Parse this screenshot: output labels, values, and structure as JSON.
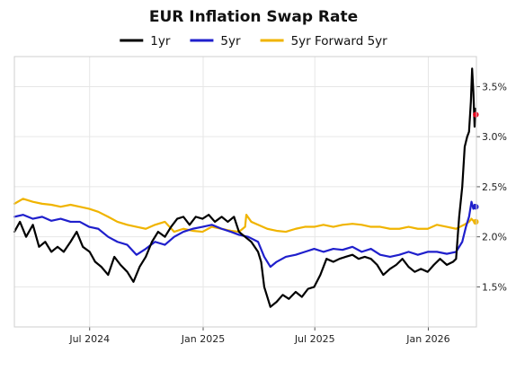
{
  "chart_data": {
    "type": "line",
    "title": "EUR Inflation Swap Rate",
    "xlabel": "",
    "ylabel": "",
    "x_range": [
      "2024-03-01",
      "2026-03-20"
    ],
    "ylim": [
      1.1,
      3.8
    ],
    "y_ticks": [
      1.5,
      2.0,
      2.5,
      3.0,
      3.5
    ],
    "y_tick_labels": [
      "1.5%",
      "2.0%",
      "2.5%",
      "3.0%",
      "3.5%"
    ],
    "x_ticks": [
      "2024-07-01",
      "2025-01-01",
      "2025-07-01",
      "2026-01-01"
    ],
    "x_tick_labels": [
      "Jul 2024",
      "Jan 2025",
      "Jul 2025",
      "Jan 2026"
    ],
    "y_axis_side": "right",
    "grid": true,
    "legend_position": "top-center",
    "series": [
      {
        "name": "1yr",
        "color": "#000000",
        "endpoint_marker_color": "#e8001c",
        "points": [
          [
            "2024-03-01",
            2.05
          ],
          [
            "2024-03-10",
            2.15
          ],
          [
            "2024-03-20",
            2.0
          ],
          [
            "2024-03-31",
            2.12
          ],
          [
            "2024-04-10",
            1.9
          ],
          [
            "2024-04-20",
            1.95
          ],
          [
            "2024-04-30",
            1.85
          ],
          [
            "2024-05-10",
            1.9
          ],
          [
            "2024-05-20",
            1.85
          ],
          [
            "2024-05-31",
            1.95
          ],
          [
            "2024-06-10",
            2.05
          ],
          [
            "2024-06-20",
            1.9
          ],
          [
            "2024-07-01",
            1.85
          ],
          [
            "2024-07-10",
            1.75
          ],
          [
            "2024-07-20",
            1.7
          ],
          [
            "2024-07-31",
            1.62
          ],
          [
            "2024-08-10",
            1.8
          ],
          [
            "2024-08-20",
            1.72
          ],
          [
            "2024-08-31",
            1.65
          ],
          [
            "2024-09-10",
            1.55
          ],
          [
            "2024-09-20",
            1.7
          ],
          [
            "2024-09-30",
            1.8
          ],
          [
            "2024-10-10",
            1.95
          ],
          [
            "2024-10-20",
            2.05
          ],
          [
            "2024-10-31",
            2.0
          ],
          [
            "2024-11-10",
            2.1
          ],
          [
            "2024-11-20",
            2.18
          ],
          [
            "2024-11-30",
            2.2
          ],
          [
            "2024-12-10",
            2.12
          ],
          [
            "2024-12-20",
            2.2
          ],
          [
            "2024-12-31",
            2.18
          ],
          [
            "2025-01-10",
            2.22
          ],
          [
            "2025-01-20",
            2.15
          ],
          [
            "2025-01-31",
            2.2
          ],
          [
            "2025-02-10",
            2.15
          ],
          [
            "2025-02-20",
            2.2
          ],
          [
            "2025-02-28",
            2.05
          ],
          [
            "2025-03-10",
            2.0
          ],
          [
            "2025-03-20",
            1.95
          ],
          [
            "2025-03-31",
            1.85
          ],
          [
            "2025-04-05",
            1.75
          ],
          [
            "2025-04-10",
            1.5
          ],
          [
            "2025-04-20",
            1.3
          ],
          [
            "2025-04-30",
            1.35
          ],
          [
            "2025-05-10",
            1.42
          ],
          [
            "2025-05-20",
            1.38
          ],
          [
            "2025-05-31",
            1.45
          ],
          [
            "2025-06-10",
            1.4
          ],
          [
            "2025-06-20",
            1.48
          ],
          [
            "2025-06-30",
            1.5
          ],
          [
            "2025-07-10",
            1.62
          ],
          [
            "2025-07-20",
            1.78
          ],
          [
            "2025-07-31",
            1.75
          ],
          [
            "2025-08-10",
            1.78
          ],
          [
            "2025-08-20",
            1.8
          ],
          [
            "2025-08-31",
            1.82
          ],
          [
            "2025-09-10",
            1.78
          ],
          [
            "2025-09-20",
            1.8
          ],
          [
            "2025-09-30",
            1.78
          ],
          [
            "2025-10-10",
            1.72
          ],
          [
            "2025-10-20",
            1.62
          ],
          [
            "2025-10-31",
            1.68
          ],
          [
            "2025-11-10",
            1.72
          ],
          [
            "2025-11-20",
            1.78
          ],
          [
            "2025-11-30",
            1.7
          ],
          [
            "2025-12-10",
            1.65
          ],
          [
            "2025-12-20",
            1.68
          ],
          [
            "2025-12-31",
            1.65
          ],
          [
            "2026-01-10",
            1.72
          ],
          [
            "2026-01-20",
            1.78
          ],
          [
            "2026-01-31",
            1.72
          ],
          [
            "2026-02-10",
            1.75
          ],
          [
            "2026-02-15",
            1.78
          ],
          [
            "2026-02-20",
            2.2
          ],
          [
            "2026-02-25",
            2.5
          ],
          [
            "2026-03-01",
            2.9
          ],
          [
            "2026-03-05",
            3.0
          ],
          [
            "2026-03-08",
            3.05
          ],
          [
            "2026-03-11",
            3.35
          ],
          [
            "2026-03-13",
            3.68
          ],
          [
            "2026-03-15",
            3.45
          ],
          [
            "2026-03-17",
            3.1
          ],
          [
            "2026-03-18",
            3.28
          ],
          [
            "2026-03-19",
            3.22
          ]
        ]
      },
      {
        "name": "5yr",
        "color": "#1f1fcc",
        "points": [
          [
            "2024-03-01",
            2.2
          ],
          [
            "2024-03-15",
            2.22
          ],
          [
            "2024-03-31",
            2.18
          ],
          [
            "2024-04-15",
            2.2
          ],
          [
            "2024-04-30",
            2.16
          ],
          [
            "2024-05-15",
            2.18
          ],
          [
            "2024-05-31",
            2.15
          ],
          [
            "2024-06-15",
            2.15
          ],
          [
            "2024-06-30",
            2.1
          ],
          [
            "2024-07-15",
            2.08
          ],
          [
            "2024-07-31",
            2.0
          ],
          [
            "2024-08-15",
            1.95
          ],
          [
            "2024-08-31",
            1.92
          ],
          [
            "2024-09-15",
            1.82
          ],
          [
            "2024-09-30",
            1.88
          ],
          [
            "2024-10-15",
            1.95
          ],
          [
            "2024-10-31",
            1.92
          ],
          [
            "2024-11-15",
            2.0
          ],
          [
            "2024-11-30",
            2.05
          ],
          [
            "2024-12-15",
            2.08
          ],
          [
            "2024-12-31",
            2.1
          ],
          [
            "2025-01-15",
            2.12
          ],
          [
            "2025-01-31",
            2.08
          ],
          [
            "2025-02-15",
            2.05
          ],
          [
            "2025-02-28",
            2.02
          ],
          [
            "2025-03-15",
            2.0
          ],
          [
            "2025-03-31",
            1.95
          ],
          [
            "2025-04-10",
            1.8
          ],
          [
            "2025-04-20",
            1.7
          ],
          [
            "2025-04-30",
            1.75
          ],
          [
            "2025-05-15",
            1.8
          ],
          [
            "2025-05-31",
            1.82
          ],
          [
            "2025-06-15",
            1.85
          ],
          [
            "2025-06-30",
            1.88
          ],
          [
            "2025-07-15",
            1.85
          ],
          [
            "2025-07-31",
            1.88
          ],
          [
            "2025-08-15",
            1.87
          ],
          [
            "2025-08-31",
            1.9
          ],
          [
            "2025-09-15",
            1.85
          ],
          [
            "2025-09-30",
            1.88
          ],
          [
            "2025-10-15",
            1.82
          ],
          [
            "2025-10-31",
            1.8
          ],
          [
            "2025-11-15",
            1.82
          ],
          [
            "2025-11-30",
            1.85
          ],
          [
            "2025-12-15",
            1.82
          ],
          [
            "2025-12-31",
            1.85
          ],
          [
            "2026-01-15",
            1.85
          ],
          [
            "2026-01-31",
            1.83
          ],
          [
            "2026-02-15",
            1.85
          ],
          [
            "2026-02-25",
            1.95
          ],
          [
            "2026-03-03",
            2.1
          ],
          [
            "2026-03-08",
            2.2
          ],
          [
            "2026-03-12",
            2.35
          ],
          [
            "2026-03-15",
            2.28
          ],
          [
            "2026-03-17",
            2.32
          ],
          [
            "2026-03-19",
            2.3
          ]
        ]
      },
      {
        "name": "5yr Forward 5yr",
        "color": "#f0b400",
        "points": [
          [
            "2024-03-01",
            2.33
          ],
          [
            "2024-03-15",
            2.38
          ],
          [
            "2024-03-31",
            2.35
          ],
          [
            "2024-04-15",
            2.33
          ],
          [
            "2024-04-30",
            2.32
          ],
          [
            "2024-05-15",
            2.3
          ],
          [
            "2024-05-31",
            2.32
          ],
          [
            "2024-06-15",
            2.3
          ],
          [
            "2024-06-30",
            2.28
          ],
          [
            "2024-07-15",
            2.25
          ],
          [
            "2024-07-31",
            2.2
          ],
          [
            "2024-08-15",
            2.15
          ],
          [
            "2024-08-31",
            2.12
          ],
          [
            "2024-09-15",
            2.1
          ],
          [
            "2024-09-30",
            2.08
          ],
          [
            "2024-10-15",
            2.12
          ],
          [
            "2024-10-31",
            2.15
          ],
          [
            "2024-11-15",
            2.05
          ],
          [
            "2024-11-30",
            2.08
          ],
          [
            "2024-12-15",
            2.06
          ],
          [
            "2024-12-31",
            2.05
          ],
          [
            "2025-01-15",
            2.1
          ],
          [
            "2025-01-31",
            2.08
          ],
          [
            "2025-02-15",
            2.06
          ],
          [
            "2025-02-28",
            2.05
          ],
          [
            "2025-03-10",
            2.1
          ],
          [
            "2025-03-12",
            2.22
          ],
          [
            "2025-03-20",
            2.15
          ],
          [
            "2025-03-31",
            2.12
          ],
          [
            "2025-04-15",
            2.08
          ],
          [
            "2025-04-30",
            2.06
          ],
          [
            "2025-05-15",
            2.05
          ],
          [
            "2025-05-31",
            2.08
          ],
          [
            "2025-06-15",
            2.1
          ],
          [
            "2025-06-30",
            2.1
          ],
          [
            "2025-07-15",
            2.12
          ],
          [
            "2025-07-31",
            2.1
          ],
          [
            "2025-08-15",
            2.12
          ],
          [
            "2025-08-31",
            2.13
          ],
          [
            "2025-09-15",
            2.12
          ],
          [
            "2025-09-30",
            2.1
          ],
          [
            "2025-10-15",
            2.1
          ],
          [
            "2025-10-31",
            2.08
          ],
          [
            "2025-11-15",
            2.08
          ],
          [
            "2025-11-30",
            2.1
          ],
          [
            "2025-12-15",
            2.08
          ],
          [
            "2025-12-31",
            2.08
          ],
          [
            "2026-01-15",
            2.12
          ],
          [
            "2026-01-31",
            2.1
          ],
          [
            "2026-02-15",
            2.08
          ],
          [
            "2026-02-28",
            2.12
          ],
          [
            "2026-03-08",
            2.15
          ],
          [
            "2026-03-12",
            2.18
          ],
          [
            "2026-03-15",
            2.16
          ],
          [
            "2026-03-19",
            2.15
          ]
        ]
      }
    ]
  }
}
